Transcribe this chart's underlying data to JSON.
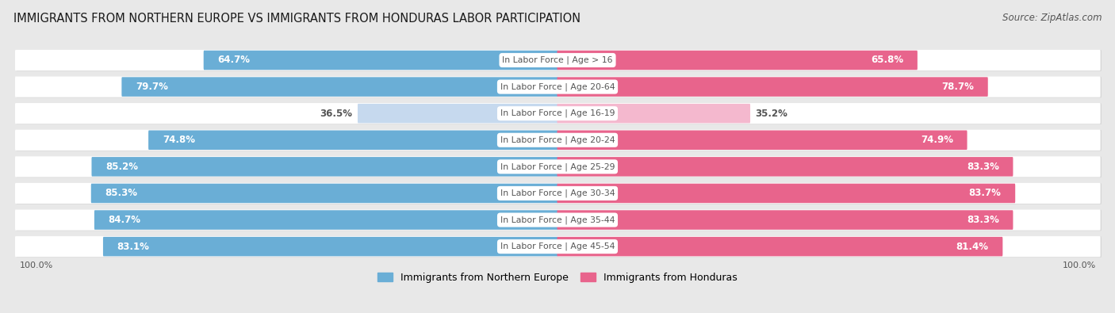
{
  "title": "IMMIGRANTS FROM NORTHERN EUROPE VS IMMIGRANTS FROM HONDURAS LABOR PARTICIPATION",
  "source": "Source: ZipAtlas.com",
  "categories": [
    "In Labor Force | Age > 16",
    "In Labor Force | Age 20-64",
    "In Labor Force | Age 16-19",
    "In Labor Force | Age 20-24",
    "In Labor Force | Age 25-29",
    "In Labor Force | Age 30-34",
    "In Labor Force | Age 35-44",
    "In Labor Force | Age 45-54"
  ],
  "north_europe_values": [
    64.7,
    79.7,
    36.5,
    74.8,
    85.2,
    85.3,
    84.7,
    83.1
  ],
  "honduras_values": [
    65.8,
    78.7,
    35.2,
    74.9,
    83.3,
    83.7,
    83.3,
    81.4
  ],
  "north_europe_color": "#6aaed6",
  "north_europe_light_color": "#c6d9ee",
  "honduras_color": "#e8648c",
  "honduras_light_color": "#f4b8ce",
  "bg_color": "#e8e8e8",
  "row_bg_color": "#f2f2f2",
  "label_color_dark": "#555555",
  "label_color_white": "#ffffff",
  "legend_label_north": "Immigrants from Northern Europe",
  "legend_label_honduras": "Immigrants from Honduras",
  "max_val": 100.0,
  "title_fontsize": 10.5,
  "bar_label_fontsize": 8.5,
  "cat_label_fontsize": 7.8,
  "legend_fontsize": 9,
  "axis_label_fontsize": 8
}
